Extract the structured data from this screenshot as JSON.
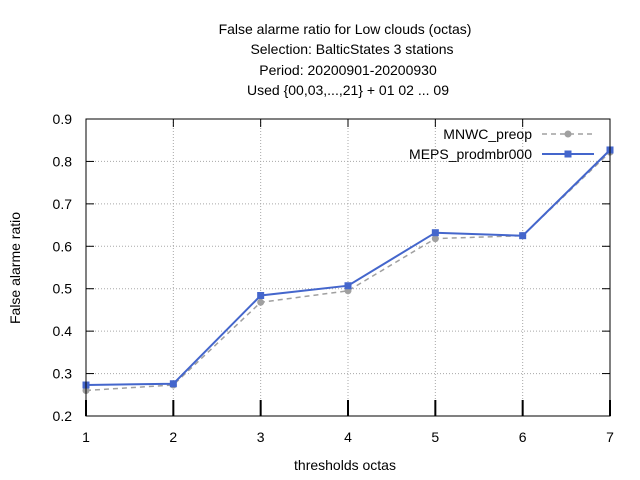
{
  "chart_data": {
    "type": "line",
    "title_lines": [
      "False alarme ratio  for Low clouds (octas)",
      "Selection: BalticStates      3 stations",
      "Period: 20200901-20200930",
      "Used {00,03,...,21} + 01 02 ... 09"
    ],
    "xlabel": "thresholds octas",
    "ylabel": "False alarme ratio",
    "xlim": [
      1,
      7
    ],
    "ylim": [
      0.2,
      0.9
    ],
    "x_ticks": [
      "1",
      "2",
      "3",
      "4",
      "5",
      "6",
      "7"
    ],
    "y_ticks": [
      "0.2",
      "0.3",
      "0.4",
      "0.5",
      "0.6",
      "0.7",
      "0.8",
      "0.9"
    ],
    "grid": true,
    "legend_position": "top-right",
    "x": [
      1,
      2,
      3,
      4,
      5,
      6,
      7
    ],
    "series": [
      {
        "name": "MNWC_preop",
        "values": [
          0.26,
          0.273,
          0.468,
          0.495,
          0.618,
          0.625,
          0.822
        ],
        "color": "#a0a0a0",
        "style": "dashed"
      },
      {
        "name": "MEPS_prodmbr000",
        "values": [
          0.273,
          0.276,
          0.484,
          0.507,
          0.632,
          0.625,
          0.827
        ],
        "color": "#4466cc",
        "style": "solid"
      }
    ]
  }
}
